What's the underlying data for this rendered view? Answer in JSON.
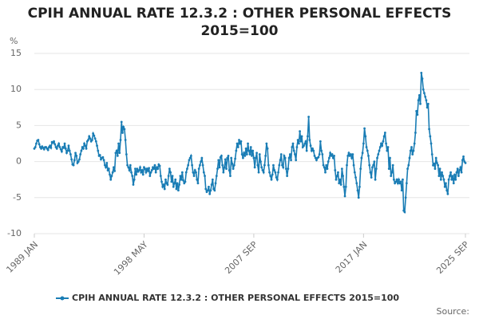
{
  "chart_data": {
    "type": "line",
    "title": "CPIH ANNUAL RATE 12.3.2 : OTHER PERSONAL EFFECTS 2015=100",
    "y_label": "%",
    "source": "Source:",
    "ylim": [
      -10,
      15
    ],
    "yticks": [
      -10,
      -5,
      0,
      5,
      10,
      15
    ],
    "grid": true,
    "categories": [
      "1989 JAN",
      null,
      null,
      null,
      null,
      null,
      null,
      null,
      null,
      null,
      null,
      null,
      null,
      null,
      null,
      null,
      null,
      null,
      null,
      null,
      null,
      null,
      null,
      null,
      null,
      null,
      null,
      null,
      null,
      null,
      null,
      null,
      null,
      null,
      null,
      null,
      null,
      null,
      null,
      null,
      null,
      null,
      null,
      null,
      null,
      null,
      null,
      null,
      null,
      null,
      null,
      null,
      null,
      null,
      null,
      null,
      null,
      null,
      null,
      null,
      null,
      null,
      null,
      null,
      null,
      null,
      null,
      null,
      null,
      null,
      null,
      null,
      null,
      null,
      null,
      null,
      null,
      null,
      null,
      null,
      null,
      null,
      null,
      null,
      null,
      null,
      null,
      null,
      null,
      null,
      null,
      null,
      null,
      null,
      null,
      null,
      null,
      null,
      null,
      null,
      null,
      null,
      null,
      null,
      null,
      null,
      null,
      null,
      null,
      null,
      null,
      null,
      "1998 MAY",
      null,
      null,
      null,
      null,
      null,
      null,
      null,
      null,
      null,
      null,
      null,
      null,
      null,
      null,
      null,
      null,
      null,
      null,
      null,
      null,
      null,
      null,
      null,
      null,
      null,
      null,
      null,
      null,
      null,
      null,
      null,
      null,
      null,
      null,
      null,
      null,
      null,
      null,
      null,
      null,
      null,
      null,
      null,
      null,
      null,
      null,
      null,
      null,
      null,
      null,
      null,
      null,
      null,
      null,
      null,
      null,
      null,
      null,
      null,
      null,
      null,
      null,
      null,
      null,
      null,
      null,
      null,
      null,
      null,
      null,
      null,
      null,
      null,
      null,
      null,
      null,
      null,
      null,
      null,
      null,
      null,
      null,
      null,
      null,
      null,
      null,
      null,
      null,
      null,
      null,
      null,
      null,
      null,
      null,
      null,
      null,
      null,
      null,
      null,
      null,
      null,
      null,
      null,
      null,
      null,
      null,
      null,
      null,
      null,
      null,
      null,
      "2007 SEP",
      null,
      null,
      null,
      null,
      null,
      null,
      null,
      null,
      null,
      null,
      null,
      null,
      null,
      null,
      null,
      null,
      null,
      null,
      null,
      null,
      null,
      null,
      null,
      null,
      null,
      null,
      null,
      null,
      null,
      null,
      null,
      null,
      null,
      null,
      null,
      null,
      null,
      null,
      null,
      null,
      null,
      null,
      null,
      null,
      null,
      null,
      null,
      null,
      null,
      null,
      null,
      null,
      null,
      null,
      null,
      null,
      null,
      null,
      null,
      null,
      null,
      null,
      null,
      null,
      null,
      null,
      null,
      null,
      null,
      null,
      null,
      null,
      null,
      null,
      null,
      null,
      null,
      null,
      null,
      null,
      null,
      null,
      null,
      null,
      null,
      null,
      null,
      null,
      null,
      null,
      null,
      null,
      null,
      null,
      null,
      null,
      null,
      null,
      null,
      null,
      null,
      null,
      null,
      null,
      null,
      null,
      null,
      null,
      null,
      null,
      null,
      "2017 JAN",
      null,
      null,
      null,
      null,
      null,
      null,
      null,
      null,
      null,
      null,
      null,
      null,
      null,
      null,
      null,
      null,
      null,
      null,
      null,
      null,
      null,
      null,
      null,
      null,
      null,
      null,
      null,
      null,
      null,
      null,
      null,
      null,
      null,
      null,
      null,
      null,
      null,
      null,
      null,
      null,
      null,
      null,
      null,
      null,
      null,
      null,
      null,
      null,
      null,
      null,
      null,
      null,
      null,
      null,
      null,
      null,
      null,
      null,
      null,
      null,
      null,
      null,
      null,
      null,
      null,
      null,
      null,
      null,
      null,
      null,
      null,
      null,
      null,
      null,
      null,
      null,
      null,
      null,
      null,
      null,
      null,
      null,
      null,
      null,
      null,
      null,
      null,
      null,
      null,
      null,
      null,
      null,
      null,
      null,
      null,
      null,
      null,
      null,
      null,
      null,
      null,
      null,
      null,
      "2025 SEP"
    ],
    "series": [
      {
        "name": "CPIH ANNUAL RATE 12.3.2 : OTHER PERSONAL EFFECTS 2015=100",
        "color": "#1a7db5",
        "values": [
          1.8,
          2.0,
          2.5,
          2.9,
          3.0,
          2.4,
          2.0,
          1.8,
          2.1,
          1.9,
          1.7,
          2.0,
          2.0,
          1.8,
          1.6,
          2.0,
          2.2,
          1.9,
          2.7,
          2.6,
          2.8,
          2.4,
          2.0,
          1.8,
          2.2,
          2.5,
          2.0,
          1.7,
          1.4,
          2.0,
          1.9,
          2.5,
          1.8,
          1.2,
          1.5,
          2.2,
          1.5,
          1.0,
          0.3,
          -0.4,
          -0.5,
          0.2,
          1.2,
          0.8,
          -0.2,
          0.0,
          0.3,
          1.0,
          1.5,
          2.0,
          1.8,
          2.5,
          2.2,
          1.8,
          2.8,
          3.0,
          3.5,
          3.2,
          2.8,
          3.0,
          3.9,
          3.6,
          3.2,
          2.8,
          2.2,
          1.5,
          0.8,
          0.9,
          0.3,
          0.5,
          0.6,
          0.2,
          -0.5,
          -0.8,
          -0.2,
          -1.2,
          -1.0,
          -1.8,
          -2.5,
          -2.0,
          -1.5,
          -0.8,
          -1.3,
          1.2,
          1.5,
          0.8,
          2.5,
          1.2,
          3.0,
          5.5,
          4.0,
          4.8,
          4.5,
          3.0,
          1.0,
          -0.5,
          -0.8,
          -1.2,
          -0.5,
          -1.5,
          -2.0,
          -3.2,
          -2.5,
          -1.0,
          -1.8,
          -1.0,
          -1.4,
          -1.2,
          -0.8,
          -1.5,
          -1.2,
          -1.8,
          -0.8,
          -1.0,
          -1.5,
          -1.0,
          -1.3,
          -0.9,
          -2.0,
          -1.5,
          -1.2,
          -0.8,
          -1.0,
          -0.5,
          -1.5,
          -0.8,
          -1.0,
          -0.4,
          -0.6,
          -2.0,
          -2.8,
          -3.5,
          -3.2,
          -3.8,
          -2.5,
          -3.0,
          -3.2,
          -2.0,
          -1.0,
          -1.5,
          -2.8,
          -2.0,
          -3.5,
          -3.0,
          -2.5,
          -3.8,
          -3.0,
          -4.0,
          -3.2,
          -2.0,
          -2.5,
          -1.5,
          -2.6,
          -3.0,
          -2.8,
          -1.5,
          -1.0,
          -0.5,
          0.2,
          0.5,
          0.8,
          -0.5,
          -1.5,
          -2.0,
          -1.2,
          -1.5,
          -2.5,
          -3.0,
          -1.0,
          -0.5,
          0.0,
          0.5,
          -0.5,
          -1.5,
          -2.0,
          -3.8,
          -4.2,
          -4.0,
          -3.5,
          -4.5,
          -4.0,
          -3.2,
          -2.5,
          -3.8,
          -4.0,
          -3.0,
          -2.0,
          -1.0,
          0.2,
          -0.8,
          0.6,
          0.8,
          -0.5,
          -1.5,
          -0.8,
          0.3,
          -1.0,
          0.5,
          0.8,
          -1.2,
          -2.0,
          0.5,
          -0.3,
          -1.0,
          -0.5,
          0.4,
          1.5,
          2.5,
          2.0,
          3.0,
          2.5,
          2.8,
          1.0,
          0.5,
          1.2,
          0.8,
          1.8,
          1.0,
          2.5,
          1.5,
          1.0,
          2.0,
          0.8,
          1.5,
          0.5,
          -0.8,
          0.5,
          1.2,
          -0.5,
          -1.5,
          1.0,
          0.0,
          -0.8,
          -1.2,
          -1.5,
          -0.5,
          0.8,
          2.5,
          1.8,
          -0.5,
          -1.5,
          -2.0,
          -2.5,
          -1.8,
          -0.5,
          -1.2,
          -1.5,
          -2.2,
          -2.5,
          -1.5,
          -0.5,
          0.2,
          1.0,
          -0.5,
          -0.8,
          0.8,
          0.5,
          -1.0,
          -2.0,
          -1.0,
          0.5,
          1.0,
          0.2,
          2.0,
          2.5,
          1.5,
          1.0,
          0.2,
          2.0,
          3.0,
          2.5,
          4.2,
          2.8,
          3.5,
          2.0,
          2.2,
          2.5,
          2.8,
          1.5,
          3.5,
          6.2,
          3.0,
          2.2,
          1.5,
          1.8,
          1.5,
          0.8,
          0.5,
          0.2,
          0.5,
          0.6,
          1.0,
          2.8,
          1.5,
          1.0,
          -0.5,
          -0.8,
          -1.5,
          -0.5,
          -1.0,
          0.0,
          0.5,
          1.2,
          0.8,
          1.0,
          0.5,
          0.8,
          -1.2,
          -2.5,
          -2.0,
          -1.5,
          -3.0,
          -2.5,
          -3.2,
          -1.0,
          -2.0,
          -3.5,
          -4.8,
          -3.5,
          -0.5,
          0.8,
          1.2,
          0.8,
          1.0,
          0.5,
          1.0,
          -0.5,
          -1.5,
          -2.2,
          -3.0,
          -4.0,
          -5.0,
          -3.5,
          -1.0,
          0.5,
          1.2,
          2.5,
          4.6,
          3.5,
          2.0,
          1.5,
          0.8,
          -0.5,
          -1.5,
          -2.2,
          -0.8,
          -0.5,
          0.0,
          -2.5,
          -1.0,
          0.5,
          1.0,
          1.5,
          2.0,
          2.5,
          2.2,
          2.8,
          3.5,
          4.0,
          2.5,
          1.5,
          2.0,
          -1.0,
          0.5,
          -2.0,
          -1.5,
          -0.5,
          -2.5,
          -3.0,
          -2.8,
          -2.5,
          -3.0,
          -2.5,
          -3.0,
          -2.8,
          -4.0,
          -2.5,
          -6.8,
          -7.0,
          -5.0,
          -3.0,
          -1.0,
          -0.5,
          0.5,
          1.5,
          2.0,
          1.0,
          1.5,
          2.5,
          4.0,
          7.0,
          6.5,
          8.5,
          9.2,
          8.0,
          12.3,
          11.5,
          10.0,
          9.5,
          9.0,
          8.5,
          7.5,
          8.0,
          4.5,
          3.5,
          2.5,
          1.0,
          -0.5,
          -0.3,
          -1.0,
          0.5,
          -0.2,
          -0.5,
          -2.0,
          -1.0,
          -2.5,
          -1.5,
          -2.0,
          -2.5,
          -3.5,
          -3.0,
          -4.0,
          -4.5,
          -2.5,
          -2.0,
          -1.5,
          -2.5,
          -2.0,
          -3.0,
          -1.8,
          -2.5,
          -1.5,
          -1.0,
          -2.0,
          -1.2,
          -0.8,
          -1.5,
          0.2,
          0.7,
          0.0,
          -0.2
        ]
      }
    ]
  }
}
